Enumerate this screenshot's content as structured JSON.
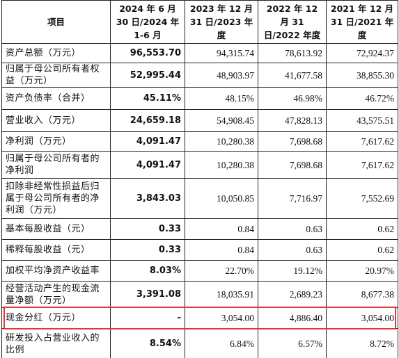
{
  "table": {
    "headers": [
      "项目",
      "2024 年 6 月 30 日/2024 年 1-6 月",
      "2023 年 12 月 31 日/2023 年度",
      "2022 年 12 月 31 日/2022 年度",
      "2021 年 12 月 31 日/2021 年度"
    ],
    "rows": [
      [
        "资产总额（万元）",
        "96,553.70",
        "94,315.74",
        "78,613.92",
        "72,924.37"
      ],
      [
        "归属于母公司所有者权益（万元）",
        "52,995.44",
        "48,903.97",
        "41,677.58",
        "38,855.30"
      ],
      [
        "资产负债率（合并）",
        "45.11%",
        "48.15%",
        "46.98%",
        "46.72%"
      ],
      [
        "营业收入（万元）",
        "24,659.18",
        "54,908.45",
        "47,828.13",
        "43,575.51"
      ],
      [
        "净利润（万元）",
        "4,091.47",
        "10,280.38",
        "7,698.68",
        "7,617.62"
      ],
      [
        "归属于母公司所有者的净利润",
        "4,091.47",
        "10,280.38",
        "7,698.68",
        "7,617.62"
      ],
      [
        "扣除非经常性损益后归属于母公司所有者的净利润（万元）",
        "3,843.03",
        "10,050.85",
        "7,716.97",
        "7,552.69"
      ],
      [
        "基本每股收益（元）",
        "0.33",
        "0.84",
        "0.63",
        "0.62"
      ],
      [
        "稀释每股收益（元）",
        "0.33",
        "0.84",
        "0.63",
        "0.62"
      ],
      [
        "加权平均净资产收益率",
        "8.03%",
        "22.70%",
        "19.12%",
        "20.97%"
      ],
      [
        "经营活动产生的现金流量净额（万元）",
        "3,391.08",
        "18,035.91",
        "2,689.23",
        "8,677.38"
      ],
      [
        "现金分红（万元）",
        "-",
        "3,054.00",
        "4,886.40",
        "3,054.00"
      ],
      [
        "研发投入占营业收入的比例",
        "8.54%",
        "6.84%",
        "6.57%",
        "8.72%"
      ]
    ]
  }
}
